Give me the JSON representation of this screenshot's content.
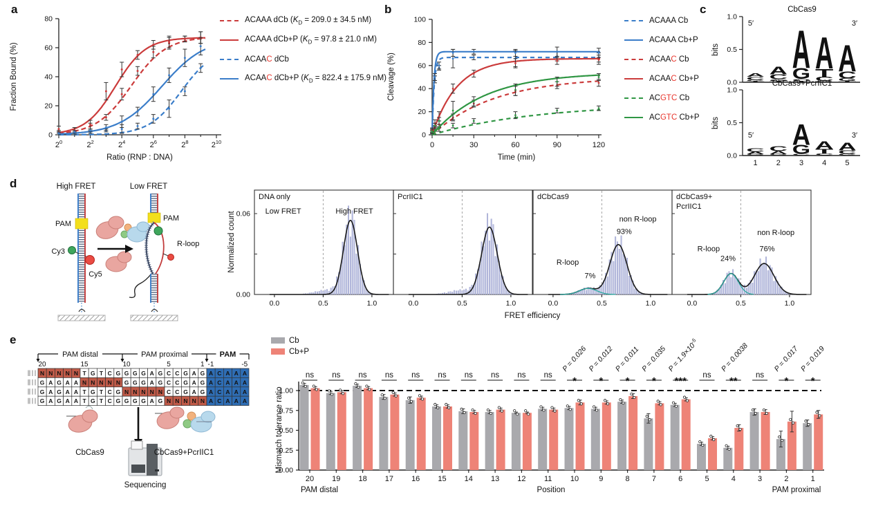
{
  "panel_labels": {
    "a": "a",
    "b": "b",
    "c": "c",
    "d": "d",
    "e": "e"
  },
  "colors": {
    "red": "#cb3b3b",
    "blue": "#3a7dc9",
    "green": "#2f9643",
    "mismatch_red": "#e8362d",
    "gray_bar": "#a9a9ad",
    "salmon_bar": "#ee8377",
    "hist_bar": "#b7bcdf",
    "hist_bar_stroke": "#8d94c4",
    "teal": "#2ba8a0",
    "pam_blue": "#2e6db4",
    "n_red": "#c05a48",
    "pam_yellow": "#f3df1c",
    "cy3_green": "#3fa65c",
    "cy5_red": "#ea4b43",
    "sig_red": "#e03c31"
  },
  "chart_data": [
    {
      "id": "a",
      "type": "line",
      "title": "",
      "xlabel": "Ratio (RNP : DNA)",
      "ylabel": "Fraction Bound (%)",
      "x_base": 2,
      "x_exponent_ticks": [
        0,
        2,
        4,
        6,
        8,
        10
      ],
      "yticks": [
        0,
        20,
        40,
        60,
        80
      ],
      "ylim": [
        0,
        80
      ],
      "series": [
        {
          "pre": "ACAAA",
          "red": "",
          "variant": "dCb",
          "kd": "209.0 ± 34.5 nM",
          "color": "#cb3b3b",
          "dash": true,
          "fit": {
            "plateau": 67.5,
            "mid": 4.6,
            "slope": 1.3
          },
          "points_exp": [
            0,
            1,
            2,
            3,
            4,
            5,
            6,
            7,
            8,
            9
          ],
          "values": [
            4,
            3,
            6,
            12,
            28,
            44,
            57,
            63,
            66,
            67
          ],
          "errors": [
            2,
            2,
            2,
            2,
            4,
            3,
            4,
            4,
            2,
            4
          ]
        },
        {
          "pre": "ACAAA",
          "red": "",
          "variant": "dCb+P",
          "kd": "97.8 ± 21.0 nM",
          "color": "#cb3b3b",
          "dash": false,
          "fit": {
            "plateau": 67,
            "mid": 3.6,
            "slope": 1.5
          },
          "points_exp": [
            0,
            1,
            2,
            3,
            4,
            5,
            6,
            7,
            8,
            9
          ],
          "values": [
            2,
            3,
            7,
            30,
            45,
            55,
            62,
            64,
            66,
            67
          ],
          "errors": [
            1,
            2,
            3,
            6,
            5,
            3,
            3,
            4,
            2,
            4
          ]
        },
        {
          "pre": "ACAA",
          "red": "C",
          "variant": "dCb",
          "kd": "",
          "color": "#3a7dc9",
          "dash": true,
          "fit": {
            "plateau": 60,
            "mid": 7.77,
            "slope": 1.4
          },
          "points_exp": [
            0,
            1,
            2,
            3,
            4,
            5,
            6,
            7,
            8,
            9
          ],
          "values": [
            1,
            1,
            2,
            3,
            4,
            6,
            11,
            18,
            30,
            46
          ],
          "errors": [
            1,
            1,
            1,
            1,
            3,
            2,
            3,
            6,
            3,
            3
          ]
        },
        {
          "pre": "ACAA",
          "red": "C",
          "variant": "dCb+P",
          "kd": "822.4 ± 175.9 nM",
          "color": "#3a7dc9",
          "dash": false,
          "fit": {
            "plateau": 67,
            "mid": 6.55,
            "slope": 1.05
          },
          "points_exp": [
            0,
            1,
            2,
            3,
            4,
            5,
            6,
            7,
            8,
            9
          ],
          "values": [
            1,
            2,
            3,
            5,
            9,
            16,
            28,
            41,
            53,
            61
          ],
          "errors": [
            1,
            1,
            1,
            2,
            4,
            3,
            5,
            5,
            6,
            6
          ]
        }
      ]
    },
    {
      "id": "b",
      "type": "line",
      "xlabel": "Time (min)",
      "ylabel": "Cleavage (%)",
      "xticks": [
        0,
        30,
        60,
        90,
        120
      ],
      "yticks": [
        0,
        20,
        40,
        60,
        80,
        100
      ],
      "ylim": [
        0,
        100
      ],
      "points_t": [
        0,
        2,
        5,
        15,
        30,
        60,
        90,
        120
      ],
      "series": [
        {
          "pre": "ACAAA",
          "red": "",
          "variant": "Cb",
          "color": "#3a7dc9",
          "dash": true,
          "fit": {
            "plateau": 67,
            "tau": 1.5
          },
          "values": [
            2,
            48,
            58,
            66,
            67,
            66,
            68,
            67
          ],
          "errors": [
            1,
            3,
            2,
            8,
            2,
            7,
            4,
            4
          ]
        },
        {
          "pre": "ACAAA",
          "red": "",
          "variant": "Cb+P",
          "color": "#3a7dc9",
          "dash": false,
          "fit": {
            "plateau": 72,
            "tau": 1.3
          },
          "values": [
            3,
            50,
            60,
            71,
            72,
            71,
            72,
            71
          ],
          "errors": [
            1,
            3,
            3,
            3,
            2,
            3,
            4,
            4
          ]
        },
        {
          "pre": "ACAA",
          "red": "C",
          "variant": "Cb",
          "color": "#cb3b3b",
          "dash": true,
          "fit": {
            "plateau": 50,
            "tau": 45
          },
          "values": [
            3,
            6,
            9,
            15,
            27,
            38,
            43,
            45
          ],
          "errors": [
            2,
            2,
            3,
            3,
            3,
            4,
            3,
            3
          ]
        },
        {
          "pre": "ACAA",
          "red": "C",
          "variant": "Cb+P",
          "color": "#cb3b3b",
          "dash": false,
          "fit": {
            "plateau": 66,
            "tau": 18
          },
          "values": [
            4,
            10,
            16,
            40,
            53,
            62,
            64,
            65
          ],
          "errors": [
            2,
            3,
            4,
            4,
            3,
            4,
            3,
            4
          ]
        },
        {
          "pre": "AC",
          "red": "GTC",
          "variant": "Cb",
          "color": "#2f9643",
          "dash": true,
          "fit": {
            "plateau": 27,
            "tau": 75
          },
          "values": [
            2,
            4,
            5,
            8,
            12,
            17,
            21,
            23
          ],
          "errors": [
            1,
            1,
            2,
            2,
            2,
            3,
            2,
            2
          ]
        },
        {
          "pre": "AC",
          "red": "GTC",
          "variant": "Cb+P",
          "color": "#2f9643",
          "dash": false,
          "fit": {
            "plateau": 54,
            "tau": 38
          },
          "values": [
            3,
            8,
            12,
            21,
            29,
            39,
            46,
            50
          ],
          "errors": [
            2,
            2,
            3,
            8,
            4,
            5,
            4,
            3
          ]
        }
      ]
    },
    {
      "id": "c",
      "type": "logo",
      "letter_colors": {
        "A": "#dd6f5f",
        "C": "#6aa392",
        "G": "#333d59",
        "T": "#d9b06a"
      },
      "logos": [
        {
          "title": "CbCas9",
          "ylabel": "bits",
          "yticks": [
            "0.0",
            "0.5",
            "1.0"
          ],
          "five_prime": "5′",
          "three_prime": "3′",
          "stacks": [
            [
              [
                "A",
                0.055
              ],
              [
                "C",
                0.045
              ],
              [
                "G",
                0.02
              ],
              [
                "T",
                0.012
              ]
            ],
            [
              [
                "A",
                0.12
              ],
              [
                "C",
                0.075
              ],
              [
                "G",
                0.03
              ],
              [
                "T",
                0.012
              ]
            ],
            [
              [
                "A",
                0.6
              ],
              [
                "G",
                0.17
              ],
              [
                "C",
                0.035
              ],
              [
                "T",
                0.012
              ]
            ],
            [
              [
                "A",
                0.5
              ],
              [
                "T",
                0.13
              ],
              [
                "C",
                0.06
              ],
              [
                "G",
                0.015
              ]
            ],
            [
              [
                "A",
                0.42
              ],
              [
                "C",
                0.11
              ],
              [
                "G",
                0.04
              ],
              [
                "T",
                0.015
              ]
            ]
          ]
        },
        {
          "title": "CbCas9+PcrIIC1",
          "ylabel": "bits",
          "yticks": [
            "0.0",
            "0.5",
            "1.0"
          ],
          "five_prime": "5′",
          "three_prime": "3′",
          "xticklabels": [
            "1",
            "2",
            "3",
            "4",
            "5"
          ],
          "stacks": [
            [
              [
                "C",
                0.055
              ],
              [
                "A",
                0.04
              ],
              [
                "G",
                0.015
              ]
            ],
            [
              [
                "C",
                0.08
              ],
              [
                "A",
                0.05
              ],
              [
                "G",
                0.015
              ]
            ],
            [
              [
                "A",
                0.33
              ],
              [
                "G",
                0.14
              ],
              [
                "C",
                0.02
              ]
            ],
            [
              [
                "A",
                0.12
              ],
              [
                "T",
                0.07
              ],
              [
                "C",
                0.025
              ]
            ],
            [
              [
                "A",
                0.12
              ],
              [
                "C",
                0.055
              ],
              [
                "G",
                0.02
              ]
            ]
          ]
        }
      ]
    },
    {
      "id": "d",
      "type": "histogram",
      "ylabel": "Normalized count",
      "xlabel": "FRET efficiency",
      "ytick_labels": [
        [
          "0.00",
          0
        ],
        [
          "0.06",
          0.06
        ]
      ],
      "ytick_marks": [
        0.03,
        0.06
      ],
      "xticks": [
        "0.0",
        "0.5",
        "1.0"
      ],
      "threshold": 0.5,
      "panels": [
        {
          "name": [
            "DNA only"
          ],
          "annotations": [
            {
              "t": "Low FRET",
              "x": 0.09,
              "y": 0.06
            },
            {
              "t": "High FRET",
              "x": 0.82,
              "y": 0.06
            }
          ],
          "components": [
            {
              "mu": 0.78,
              "sigma": 0.072,
              "amp": 0.055
            }
          ],
          "tails": [
            {
              "mu": 0.55,
              "sigma": 0.13,
              "amp": 0.003
            }
          ]
        },
        {
          "name": [
            "PcrIIC1"
          ],
          "annotations": [],
          "components": [
            {
              "mu": 0.78,
              "sigma": 0.08,
              "amp": 0.05
            }
          ],
          "tails": [
            {
              "mu": 0.5,
              "sigma": 0.13,
              "amp": 0.003
            }
          ]
        },
        {
          "name": [
            "dCbCas9"
          ],
          "annotations": [
            {
              "t": "R-loop",
              "x": 0.15,
              "y": 0.022
            },
            {
              "t": "7%",
              "x": 0.38,
              "y": 0.012
            },
            {
              "t": "non R-loop",
              "x": 0.87,
              "y": 0.054
            },
            {
              "t": "93%",
              "x": 0.73,
              "y": 0.045
            }
          ],
          "components": [
            {
              "mu": 0.36,
              "sigma": 0.09,
              "amp": 0.0045,
              "teal": true
            },
            {
              "mu": 0.67,
              "sigma": 0.088,
              "amp": 0.037
            }
          ],
          "tails": []
        },
        {
          "name": [
            "dCbCas9+",
            "PcrIIC1"
          ],
          "annotations": [
            {
              "t": "R-loop",
              "x": 0.17,
              "y": 0.032
            },
            {
              "t": "24%",
              "x": 0.37,
              "y": 0.025
            },
            {
              "t": "non R-loop",
              "x": 0.86,
              "y": 0.044
            },
            {
              "t": "76%",
              "x": 0.77,
              "y": 0.032
            }
          ],
          "components": [
            {
              "mu": 0.4,
              "sigma": 0.075,
              "amp": 0.0155,
              "teal": true
            },
            {
              "mu": 0.74,
              "sigma": 0.1,
              "amp": 0.023
            }
          ],
          "tails": []
        }
      ]
    },
    {
      "id": "e",
      "type": "bar",
      "ylabel": "Mismatch tolerance ratio",
      "xlabel_left": "PAM distal",
      "xlabel_center": "Position",
      "xlabel_right": "PAM proximal",
      "ytick_labels": [
        "0.00",
        "0.25",
        "0.50",
        "0.75",
        "1.00"
      ],
      "ytick_values": [
        0,
        0.25,
        0.5,
        0.75,
        1.0
      ],
      "ref_line": 1.0,
      "positions": [
        "20",
        "19",
        "18",
        "17",
        "16",
        "15",
        "14",
        "13",
        "12",
        "11",
        "10",
        "9",
        "8",
        "7",
        "6",
        "5",
        "4",
        "3",
        "2",
        "1"
      ],
      "series": [
        {
          "name": "Cb",
          "color": "#a9a9ad",
          "values": [
            1.07,
            0.97,
            1.06,
            0.92,
            0.88,
            0.8,
            0.74,
            0.73,
            0.72,
            0.77,
            0.78,
            0.77,
            0.86,
            0.65,
            0.82,
            0.33,
            0.28,
            0.73,
            0.39,
            0.59
          ],
          "errors": [
            0.02,
            0.02,
            0.02,
            0.03,
            0.04,
            0.02,
            0.03,
            0.02,
            0.01,
            0.02,
            0.02,
            0.02,
            0.02,
            0.06,
            0.02,
            0.02,
            0.02,
            0.04,
            0.1,
            0.04
          ]
        },
        {
          "name": "Cb+P",
          "color": "#ee8377",
          "values": [
            1.03,
            0.98,
            1.03,
            0.95,
            0.91,
            0.8,
            0.73,
            0.76,
            0.72,
            0.76,
            0.85,
            0.85,
            0.93,
            0.84,
            0.89,
            0.4,
            0.53,
            0.73,
            0.61,
            0.7
          ],
          "errors": [
            0.02,
            0.02,
            0.02,
            0.02,
            0.02,
            0.02,
            0.02,
            0.02,
            0.01,
            0.02,
            0.03,
            0.02,
            0.03,
            0.02,
            0.02,
            0.02,
            0.04,
            0.03,
            0.13,
            0.05
          ]
        }
      ],
      "significance": [
        {
          "ns": true
        },
        {
          "ns": true
        },
        {
          "ns": true
        },
        {
          "ns": true
        },
        {
          "ns": true
        },
        {
          "ns": true
        },
        {
          "ns": true
        },
        {
          "ns": true
        },
        {
          "ns": true
        },
        {
          "ns": true
        },
        {
          "p": "0.026",
          "stars": "*"
        },
        {
          "p": "0.012",
          "stars": "*"
        },
        {
          "p": "0.011",
          "stars": "*"
        },
        {
          "p": "0.035",
          "stars": "*"
        },
        {
          "p": "1.9×10",
          "psup": "-5",
          "stars": "***"
        },
        {
          "ns": true
        },
        {
          "p": "0.0038",
          "stars": "**"
        },
        {
          "ns": true
        },
        {
          "p": "0.017",
          "stars": "*"
        },
        {
          "p": "0.019",
          "stars": "*"
        }
      ]
    }
  ],
  "panel_d_schematic": {
    "high_fret": "High FRET",
    "low_fret": "Low FRET",
    "pam_left": "PAM",
    "pam_right": "PAM",
    "cy3": "Cy3",
    "cy5": "Cy5",
    "r_loop": "R-loop"
  },
  "panel_e_diagram": {
    "bracket_labels": {
      "distal": "PAM distal",
      "proximal": "PAM proximal",
      "pam": "PAM"
    },
    "numbers": [
      {
        "t": "20",
        "col": 0
      },
      {
        "t": "15",
        "col": 5
      },
      {
        "t": "10",
        "col": 10
      },
      {
        "t": "5",
        "col": 15
      },
      {
        "t": "1",
        "col": 19
      },
      {
        "t": "-1",
        "col": 20
      },
      {
        "t": "-5",
        "col": 24
      }
    ],
    "rows": [
      {
        "seq": "NNNNNTGTCGGGGAGCCGAGACAAA"
      },
      {
        "seq": "GAGAANNNNNGGGAGCCGAGACAAA"
      },
      {
        "seq": "GAGAATGTCGNNNNNCCGAGACAAA"
      },
      {
        "seq": "GAGAATGTCGGGGAGNNNNNACAAA"
      }
    ],
    "label_cbcas9": "CbCas9",
    "label_cbcas9_pcriic1": "CbCas9+PcrIIC1",
    "label_sequencing": "Sequencing"
  }
}
